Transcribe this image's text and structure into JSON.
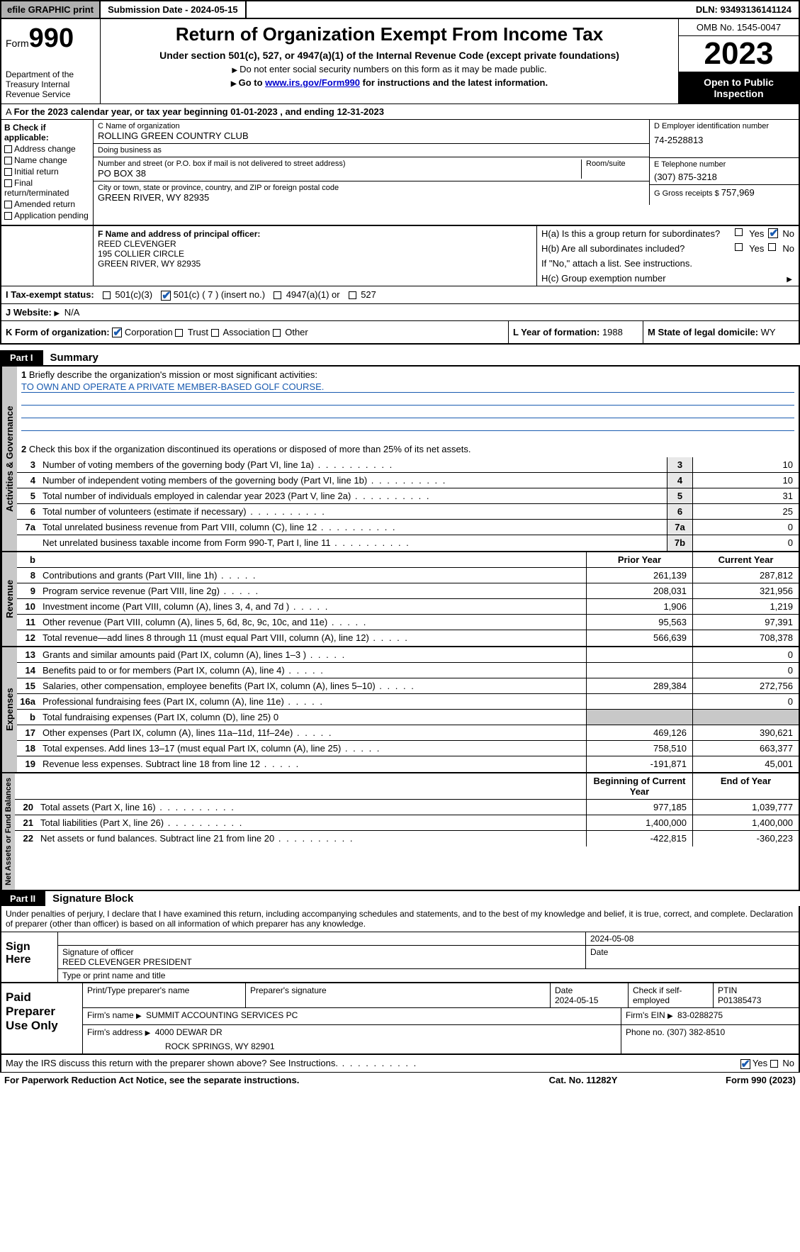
{
  "top": {
    "efile": "efile GRAPHIC print",
    "submission": "Submission Date - 2024-05-15",
    "dln": "DLN: 93493136141124"
  },
  "header": {
    "form_prefix": "Form",
    "form_number": "990",
    "dept": "Department of the Treasury Internal Revenue Service",
    "title": "Return of Organization Exempt From Income Tax",
    "subtitle": "Under section 501(c), 527, or 4947(a)(1) of the Internal Revenue Code (except private foundations)",
    "note1": "Do not enter social security numbers on this form as it may be made public.",
    "note2_pre": "Go to ",
    "note2_link": "www.irs.gov/Form990",
    "note2_post": " for instructions and the latest information.",
    "omb": "OMB No. 1545-0047",
    "year": "2023",
    "inspection": "Open to Public Inspection"
  },
  "section_a": "For the 2023 calendar year, or tax year beginning 01-01-2023   , and ending 12-31-2023",
  "col_b": {
    "hdr": "B Check if applicable:",
    "items": [
      "Address change",
      "Name change",
      "Initial return",
      "Final return/terminated",
      "Amended return",
      "Application pending"
    ]
  },
  "entity": {
    "c_lbl": "C Name of organization",
    "c_val": "ROLLING GREEN COUNTRY CLUB",
    "dba_lbl": "Doing business as",
    "dba_val": "",
    "addr_lbl": "Number and street (or P.O. box if mail is not delivered to street address)",
    "addr_val": "PO BOX 38",
    "room_lbl": "Room/suite",
    "city_lbl": "City or town, state or province, country, and ZIP or foreign postal code",
    "city_val": "GREEN RIVER, WY  82935",
    "d_lbl": "D Employer identification number",
    "d_val": "74-2528813",
    "e_lbl": "E Telephone number",
    "e_val": "(307) 875-3218",
    "g_lbl": "G Gross receipts $ ",
    "g_val": "757,969"
  },
  "officer": {
    "f_lbl": "F  Name and address of principal officer:",
    "name": "REED CLEVENGER",
    "addr1": "195 COLLIER CIRCLE",
    "addr2": "GREEN RIVER, WY  82935",
    "ha_lbl": "H(a)  Is this a group return for subordinates?",
    "hb_lbl": "H(b)  Are all subordinates included?",
    "hb_note": "If \"No,\" attach a list. See instructions.",
    "hc_lbl": "H(c)  Group exemption number",
    "yes": "Yes",
    "no": "No"
  },
  "status": {
    "label": "Tax-exempt status:",
    "opt1": "501(c)(3)",
    "opt2": "501(c) ( 7 ) (insert no.)",
    "opt3": "4947(a)(1) or",
    "opt4": "527"
  },
  "website": {
    "label": "Website:",
    "val": "N/A"
  },
  "k_row": {
    "k_label": "K Form of organization:",
    "opts": [
      "Corporation",
      "Trust",
      "Association",
      "Other"
    ],
    "l_label": "L Year of formation: ",
    "l_val": "1988",
    "m_label": "M State of legal domicile: ",
    "m_val": "WY"
  },
  "part1": {
    "label": "Part I",
    "title": "Summary"
  },
  "mission": {
    "lbl": "Briefly describe the organization's mission or most significant activities:",
    "val": "TO OWN AND OPERATE A PRIVATE MEMBER-BASED GOLF COURSE."
  },
  "governance": {
    "label": "Activities & Governance",
    "line2": "Check this box      if the organization discontinued its operations or disposed of more than 25% of its net assets.",
    "rows": [
      {
        "n": "3",
        "d": "Number of voting members of the governing body (Part VI, line 1a)",
        "box": "3",
        "v": "10"
      },
      {
        "n": "4",
        "d": "Number of independent voting members of the governing body (Part VI, line 1b)",
        "box": "4",
        "v": "10"
      },
      {
        "n": "5",
        "d": "Total number of individuals employed in calendar year 2023 (Part V, line 2a)",
        "box": "5",
        "v": "31"
      },
      {
        "n": "6",
        "d": "Total number of volunteers (estimate if necessary)",
        "box": "6",
        "v": "25"
      },
      {
        "n": "7a",
        "d": "Total unrelated business revenue from Part VIII, column (C), line 12",
        "box": "7a",
        "v": "0"
      },
      {
        "n": "",
        "d": "Net unrelated business taxable income from Form 990-T, Part I, line 11",
        "box": "7b",
        "v": "0"
      }
    ]
  },
  "revenue": {
    "label": "Revenue",
    "hdr_prior": "Prior Year",
    "hdr_current": "Current Year",
    "rows": [
      {
        "n": "8",
        "d": "Contributions and grants (Part VIII, line 1h)",
        "p": "261,139",
        "c": "287,812"
      },
      {
        "n": "9",
        "d": "Program service revenue (Part VIII, line 2g)",
        "p": "208,031",
        "c": "321,956"
      },
      {
        "n": "10",
        "d": "Investment income (Part VIII, column (A), lines 3, 4, and 7d )",
        "p": "1,906",
        "c": "1,219"
      },
      {
        "n": "11",
        "d": "Other revenue (Part VIII, column (A), lines 5, 6d, 8c, 9c, 10c, and 11e)",
        "p": "95,563",
        "c": "97,391"
      },
      {
        "n": "12",
        "d": "Total revenue—add lines 8 through 11 (must equal Part VIII, column (A), line 12)",
        "p": "566,639",
        "c": "708,378"
      }
    ]
  },
  "expenses": {
    "label": "Expenses",
    "rows": [
      {
        "n": "13",
        "d": "Grants and similar amounts paid (Part IX, column (A), lines 1–3 )",
        "p": "",
        "c": "0"
      },
      {
        "n": "14",
        "d": "Benefits paid to or for members (Part IX, column (A), line 4)",
        "p": "",
        "c": "0"
      },
      {
        "n": "15",
        "d": "Salaries, other compensation, employee benefits (Part IX, column (A), lines 5–10)",
        "p": "289,384",
        "c": "272,756"
      },
      {
        "n": "16a",
        "d": "Professional fundraising fees (Part IX, column (A), line 11e)",
        "p": "",
        "c": "0"
      },
      {
        "n": "b",
        "d": "Total fundraising expenses (Part IX, column (D), line 25) 0",
        "p": "shaded",
        "c": "shaded"
      },
      {
        "n": "17",
        "d": "Other expenses (Part IX, column (A), lines 11a–11d, 11f–24e)",
        "p": "469,126",
        "c": "390,621"
      },
      {
        "n": "18",
        "d": "Total expenses. Add lines 13–17 (must equal Part IX, column (A), line 25)",
        "p": "758,510",
        "c": "663,377"
      },
      {
        "n": "19",
        "d": "Revenue less expenses. Subtract line 18 from line 12",
        "p": "-191,871",
        "c": "45,001"
      }
    ]
  },
  "netassets": {
    "label": "Net Assets or Fund Balances",
    "hdr_begin": "Beginning of Current Year",
    "hdr_end": "End of Year",
    "rows": [
      {
        "n": "20",
        "d": "Total assets (Part X, line 16)",
        "p": "977,185",
        "c": "1,039,777"
      },
      {
        "n": "21",
        "d": "Total liabilities (Part X, line 26)",
        "p": "1,400,000",
        "c": "1,400,000"
      },
      {
        "n": "22",
        "d": "Net assets or fund balances. Subtract line 21 from line 20",
        "p": "-422,815",
        "c": "-360,223"
      }
    ]
  },
  "part2": {
    "label": "Part II",
    "title": "Signature Block"
  },
  "sig_text": "Under penalties of perjury, I declare that I have examined this return, including accompanying schedules and statements, and to the best of my knowledge and belief, it is true, correct, and complete. Declaration of preparer (other than officer) is based on all information of which preparer has any knowledge.",
  "sign": {
    "left": "Sign Here",
    "date": "2024-05-08",
    "sig_lbl": "Signature of officer",
    "name": "REED CLEVENGER  PRESIDENT",
    "type_lbl": "Type or print name and title",
    "date_lbl": "Date"
  },
  "preparer": {
    "left": "Paid Preparer Use Only",
    "hdr_name": "Print/Type preparer's name",
    "hdr_sig": "Preparer's signature",
    "hdr_date": "Date",
    "date": "2024-05-15",
    "check_lbl": "Check       if self-employed",
    "ptin_lbl": "PTIN",
    "ptin": "P01385473",
    "firm_name_lbl": "Firm's name",
    "firm_name": "SUMMIT ACCOUNTING SERVICES PC",
    "firm_ein_lbl": "Firm's EIN",
    "firm_ein": "83-0288275",
    "firm_addr_lbl": "Firm's address",
    "firm_addr1": "4000 DEWAR DR",
    "firm_addr2": "ROCK SPRINGS, WY  82901",
    "phone_lbl": "Phone no.",
    "phone": "(307) 382-8510"
  },
  "discuss": "May the IRS discuss this return with the preparer shown above? See Instructions.",
  "footer": {
    "left": "For Paperwork Reduction Act Notice, see the separate instructions.",
    "mid": "Cat. No. 11282Y",
    "right": "Form 990 (2023)"
  }
}
